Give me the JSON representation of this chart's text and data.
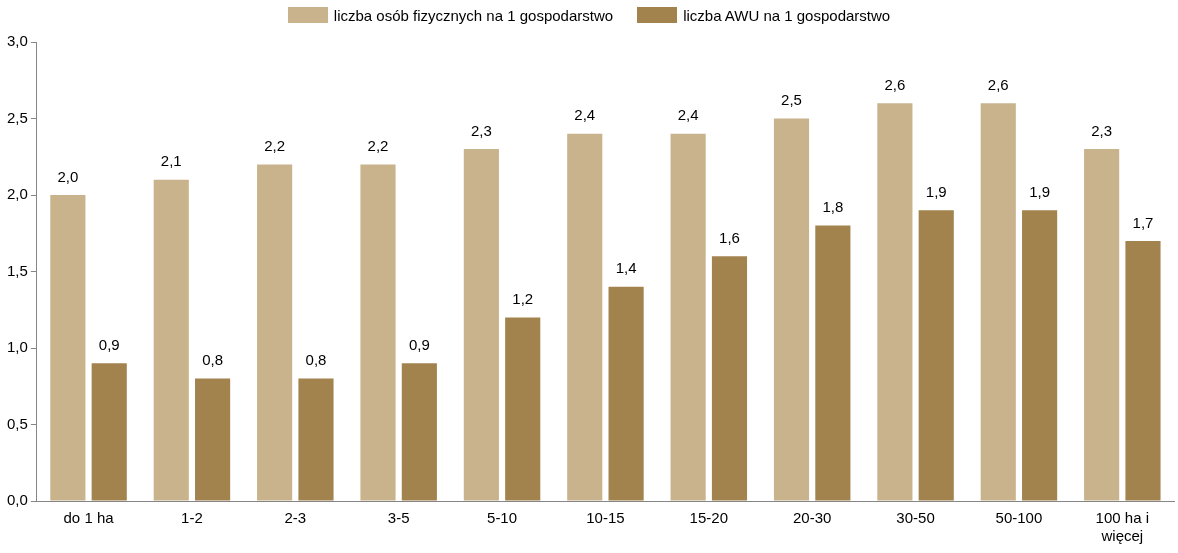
{
  "chart_data": {
    "type": "bar",
    "categories": [
      "do 1 ha",
      "1-2",
      "2-3",
      "3-5",
      "5-10",
      "10-15",
      "15-20",
      "20-30",
      "30-50",
      "50-100",
      "100 ha i więcej"
    ],
    "series": [
      {
        "name": "liczba osób fizycznych na 1 gospodarstwo",
        "color": "#c9b38c",
        "values": [
          2.0,
          2.1,
          2.2,
          2.2,
          2.3,
          2.4,
          2.4,
          2.5,
          2.6,
          2.6,
          2.3
        ],
        "value_labels": [
          "2,0",
          "2,1",
          "2,2",
          "2,2",
          "2,3",
          "2,4",
          "2,4",
          "2,5",
          "2,6",
          "2,6",
          "2,3"
        ]
      },
      {
        "name": "liczba AWU na 1 gospodarstwo",
        "color": "#a2834e",
        "values": [
          0.9,
          0.8,
          0.8,
          0.9,
          1.2,
          1.4,
          1.6,
          1.8,
          1.9,
          1.9,
          1.7
        ],
        "value_labels": [
          "0,9",
          "0,8",
          "0,8",
          "0,9",
          "1,2",
          "1,4",
          "1,6",
          "1,8",
          "1,9",
          "1,9",
          "1,7"
        ]
      }
    ],
    "ylim": [
      0,
      3
    ],
    "yticks": [
      {
        "value": 0,
        "label": "0,0"
      },
      {
        "value": 0.5,
        "label": "0,5"
      },
      {
        "value": 1,
        "label": "1,0"
      },
      {
        "value": 1.5,
        "label": "1,5"
      },
      {
        "value": 2,
        "label": "2,0"
      },
      {
        "value": 2.5,
        "label": "2,5"
      },
      {
        "value": 3,
        "label": "3,0"
      }
    ],
    "grid": false,
    "legend": "top"
  }
}
